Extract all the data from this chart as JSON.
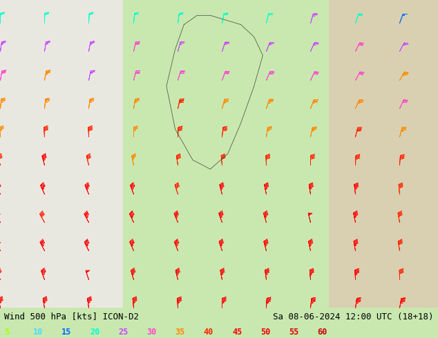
{
  "title_left": "Wind 500 hPa [kts] ICON-D2",
  "title_right": "Sa 08-06-2024 12:00 UTC (18+18)",
  "legend_values": [
    5,
    10,
    15,
    20,
    25,
    30,
    35,
    40,
    45,
    50,
    55,
    60
  ],
  "legend_colors": [
    "#aaff00",
    "#44ddff",
    "#0066ff",
    "#00ffcc",
    "#cc44ff",
    "#ff44cc",
    "#ff8800",
    "#ff2200",
    "#ff0000",
    "#ee0000",
    "#dd0000",
    "#cc0000"
  ],
  "bg_left": "#e8e8e0",
  "bg_center": "#c8e8b0",
  "bg_right": "#d8d0b0",
  "fig_width": 6.34,
  "fig_height": 4.9,
  "dpi": 100,
  "speed_boundaries": [
    0,
    7.5,
    12.5,
    17.5,
    22.5,
    27.5,
    32.5,
    37.5,
    42.5,
    47.5,
    52.5,
    57.5,
    100
  ],
  "speed_colors": [
    "#aaff00",
    "#44ddff",
    "#0066ff",
    "#00ffcc",
    "#cc44ff",
    "#ff44cc",
    "#ff8800",
    "#ff2200",
    "#ff0000",
    "#ee0000",
    "#dd0000",
    "#cc0000"
  ]
}
